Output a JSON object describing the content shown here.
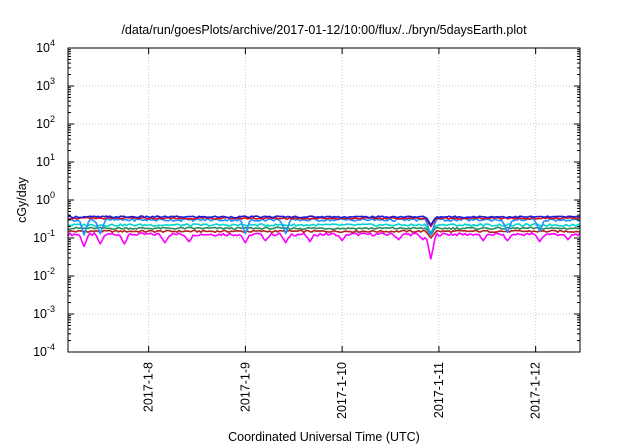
{
  "chart_data": {
    "type": "line",
    "title": "/data/run/goesPlots/archive/2017-01-12/10:00/flux/../bryn/5daysEarth.plot",
    "xlabel": "Coordinated Universal Time (UTC)",
    "ylabel": "cGy/day",
    "scale": {
      "y": "log"
    },
    "grid": true,
    "ylim": [
      0.0001,
      10000
    ],
    "xlim": [
      "2017-01-07 04:00",
      "2017-01-12 11:00"
    ],
    "x_ticks": [
      {
        "label": "2017-1-8",
        "t": "2017-01-08 00:00"
      },
      {
        "label": "2017-1-9",
        "t": "2017-01-09 00:00"
      },
      {
        "label": "2017-1-10",
        "t": "2017-01-10 00:00"
      },
      {
        "label": "2017-1-11",
        "t": "2017-01-11 00:00"
      },
      {
        "label": "2017-1-12",
        "t": "2017-01-12 00:00"
      }
    ],
    "y_ticks": [
      {
        "base": "10",
        "exp": "4",
        "value": 10000
      },
      {
        "base": "10",
        "exp": "3",
        "value": 1000
      },
      {
        "base": "10",
        "exp": "2",
        "value": 100
      },
      {
        "base": "10",
        "exp": "1",
        "value": 10
      },
      {
        "base": "10",
        "exp": "0",
        "value": 1
      },
      {
        "base": "10",
        "exp": "-1",
        "value": 0.1
      },
      {
        "base": "10",
        "exp": "-2",
        "value": 0.01
      },
      {
        "base": "10",
        "exp": "-3",
        "value": 0.001
      },
      {
        "base": "10",
        "exp": "-4",
        "value": 0.0001
      }
    ],
    "series": [
      {
        "color": "#ff00ff",
        "base": 0.125,
        "amp": 0.09,
        "dips": [
          [
            "2017-01-07 08:00",
            0.06
          ],
          [
            "2017-01-07 12:00",
            0.07
          ],
          [
            "2017-01-07 18:00",
            0.07
          ],
          [
            "2017-01-08 04:00",
            0.075
          ],
          [
            "2017-01-08 10:00",
            0.08
          ],
          [
            "2017-01-09 00:00",
            0.075
          ],
          [
            "2017-01-09 05:00",
            0.085
          ],
          [
            "2017-01-09 10:00",
            0.075
          ],
          [
            "2017-01-09 16:00",
            0.08
          ],
          [
            "2017-01-10 00:00",
            0.085
          ],
          [
            "2017-01-10 14:00",
            0.09
          ],
          [
            "2017-01-10 20:00",
            0.09
          ],
          [
            "2017-01-10 22:00",
            0.028
          ],
          [
            "2017-01-11 11:00",
            0.085
          ],
          [
            "2017-01-11 17:00",
            0.085
          ],
          [
            "2017-01-12 01:00",
            0.08
          ],
          [
            "2017-01-12 08:00",
            0.09
          ]
        ]
      },
      {
        "color": "#b22222",
        "base": 0.15,
        "amp": 0.06,
        "dips": [
          [
            "2017-01-10 22:00",
            0.1
          ]
        ]
      },
      {
        "color": "#2e8b57",
        "base": 0.18,
        "amp": 0.06,
        "dips": [
          [
            "2017-01-10 22:00",
            0.12
          ]
        ]
      },
      {
        "color": "#00d4d4",
        "base": 0.22,
        "amp": 0.07,
        "dips": [
          [
            "2017-01-10 22:00",
            0.14
          ]
        ]
      },
      {
        "color": "#1e90ff",
        "base": 0.3,
        "amp": 0.08,
        "dips": [
          [
            "2017-01-07 08:00",
            0.12
          ],
          [
            "2017-01-07 12:00",
            0.13
          ],
          [
            "2017-01-09 00:00",
            0.13
          ],
          [
            "2017-01-09 10:00",
            0.13
          ],
          [
            "2017-01-10 22:00",
            0.12
          ],
          [
            "2017-01-11 17:00",
            0.14
          ],
          [
            "2017-01-12 01:00",
            0.15
          ]
        ]
      },
      {
        "color": "#e01010",
        "base": 0.33,
        "amp": 0.05,
        "dips": [
          [
            "2017-01-10 22:00",
            0.2
          ]
        ]
      },
      {
        "color": "#1c1cd8",
        "base": 0.36,
        "amp": 0.05,
        "dips": [
          [
            "2017-01-10 22:00",
            0.22
          ]
        ]
      }
    ]
  }
}
